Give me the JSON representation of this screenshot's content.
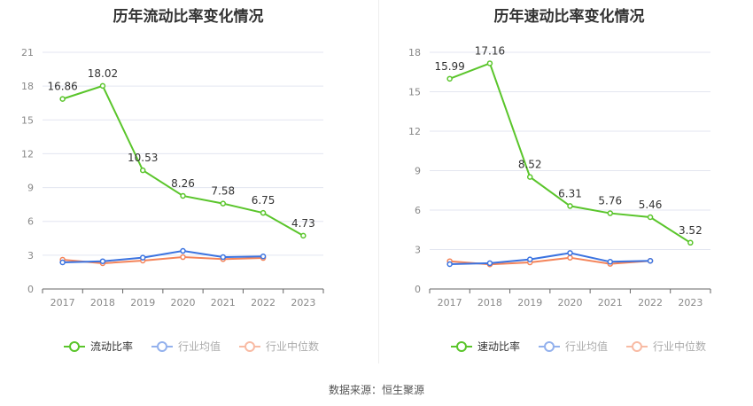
{
  "source": "数据来源：恒生聚源",
  "colors": {
    "main": "#5ac52b",
    "avg": "#3b73e0",
    "median": "#f4845a"
  },
  "chart_data": [
    {
      "type": "line",
      "title": "历年流动比率变化情况",
      "categories": [
        "2017",
        "2018",
        "2019",
        "2020",
        "2021",
        "2022",
        "2023"
      ],
      "yticks": [
        0,
        3,
        6,
        9,
        12,
        15,
        18,
        21
      ],
      "ylim": [
        0,
        21
      ],
      "grid": true,
      "legend": "bottom",
      "series": [
        {
          "name": "流动比率",
          "values": [
            16.86,
            18.02,
            10.53,
            8.26,
            7.58,
            6.75,
            4.73
          ],
          "labels": true
        },
        {
          "name": "行业均值",
          "values": [
            2.36,
            2.46,
            2.78,
            3.38,
            2.83,
            2.89,
            null
          ]
        },
        {
          "name": "行业中位数",
          "values": [
            2.6,
            2.28,
            2.52,
            2.83,
            2.65,
            2.75,
            null
          ]
        }
      ]
    },
    {
      "type": "line",
      "title": "历年速动比率变化情况",
      "categories": [
        "2017",
        "2018",
        "2019",
        "2020",
        "2021",
        "2022",
        "2023"
      ],
      "yticks": [
        0,
        3,
        6,
        9,
        12,
        15,
        18
      ],
      "ylim": [
        0,
        18
      ],
      "grid": true,
      "legend": "bottom",
      "series": [
        {
          "name": "速动比率",
          "values": [
            15.99,
            17.16,
            8.52,
            6.31,
            5.76,
            5.46,
            3.52
          ],
          "labels": true
        },
        {
          "name": "行业均值",
          "values": [
            1.89,
            1.96,
            2.25,
            2.74,
            2.07,
            2.14,
            null
          ]
        },
        {
          "name": "行业中位数",
          "values": [
            2.11,
            1.87,
            2.02,
            2.38,
            1.91,
            2.14,
            null
          ]
        }
      ]
    }
  ]
}
